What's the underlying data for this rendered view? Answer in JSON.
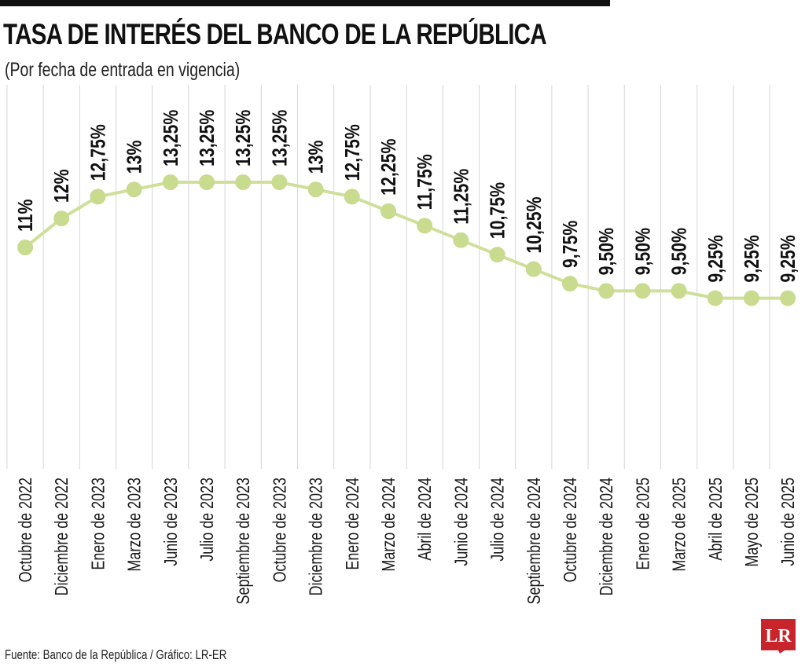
{
  "header": {
    "title": "TASA DE INTERÉS DEL BANCO DE LA REPÚBLICA",
    "subtitle": "(Por fecha de entrada en vigencia)"
  },
  "footer": {
    "source": "Fuente: Banco de la República / Gráfico: LR-ER"
  },
  "logo": {
    "text": "LR",
    "color": "#c8242b"
  },
  "colors": {
    "line": "#cfdf9a",
    "point": "#c8db8e",
    "grid": "#d6d6d6",
    "label": "#111111"
  },
  "chart_data": {
    "type": "line",
    "title": "TASA DE INTERÉS DEL BANCO DE LA REPÚBLICA",
    "subtitle": "(Por fecha de entrada en vigencia)",
    "xlabel": "",
    "ylabel": "",
    "grid": true,
    "legend": "none",
    "categories": [
      "Octubre de 2022",
      "Diciembre de 2022",
      "Enero de 2023",
      "Marzo de 2023",
      "Junio de 2023",
      "Julio de 2023",
      "Septiembre de 2023",
      "Octubre de 2023",
      "Diciembre de 2023",
      "Enero de 2024",
      "Marzo de 2024",
      "Abril de 2024",
      "Junio de 2024",
      "Julio de 2024",
      "Septiembre de 2024",
      "Octubre de 2024",
      "Diciembre de 2024",
      "Enero de 2025",
      "Marzo de 2025",
      "Abril de 2025",
      "Mayo de 2025",
      "Junio  de 2025"
    ],
    "values": [
      11,
      12,
      12.75,
      13,
      13.25,
      13.25,
      13.25,
      13.25,
      13,
      12.75,
      12.25,
      11.75,
      11.25,
      10.75,
      10.25,
      9.75,
      9.5,
      9.5,
      9.5,
      9.25,
      9.25,
      9.25
    ],
    "data_labels": [
      "11%",
      "12%",
      "12,75%",
      "13%",
      "13,25%",
      "13,25%",
      "13,25%",
      "13,25%",
      "13%",
      "12,75%",
      "12,25%",
      "11,75%",
      "11,25%",
      "10,75%",
      "10,25%",
      "9,75%",
      "9,50%",
      "9,50%",
      "9,50%",
      "9,25%",
      "9,25%",
      "9,25%"
    ]
  }
}
